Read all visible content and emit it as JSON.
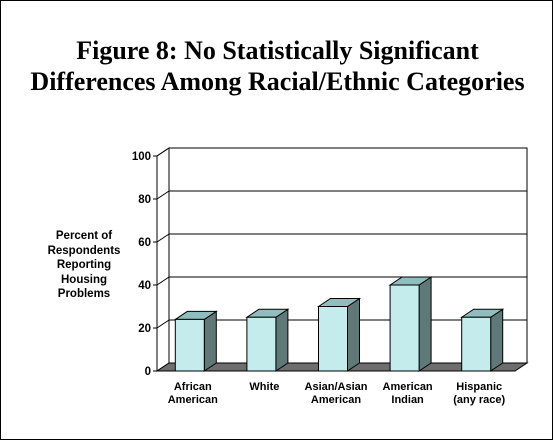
{
  "chart_data": {
    "type": "bar",
    "title": [
      "Figure 8: No Statistically Significant",
      "Differences Among Racial/Ethnic Categories"
    ],
    "ylabel": [
      "Percent of",
      "Respondents",
      "Reporting",
      "Housing",
      "Problems"
    ],
    "xlabel": "",
    "categories": [
      [
        "African",
        "American"
      ],
      [
        "White"
      ],
      [
        "Asian/Asian",
        "American"
      ],
      [
        "American",
        "Indian"
      ],
      [
        "Hispanic",
        "(any race)"
      ]
    ],
    "values": [
      24,
      25,
      30,
      40,
      25
    ],
    "ylim": [
      0,
      100
    ],
    "yticks": [
      "0",
      "20",
      "40",
      "60",
      "80",
      "100"
    ],
    "grid": true,
    "legend": "none",
    "colors": {
      "bar_front": "#c4ecec",
      "bar_side": "#5f7878",
      "bar_top": "#8fbebe",
      "floor": "#6e6e6e",
      "edge": "#000000"
    }
  }
}
